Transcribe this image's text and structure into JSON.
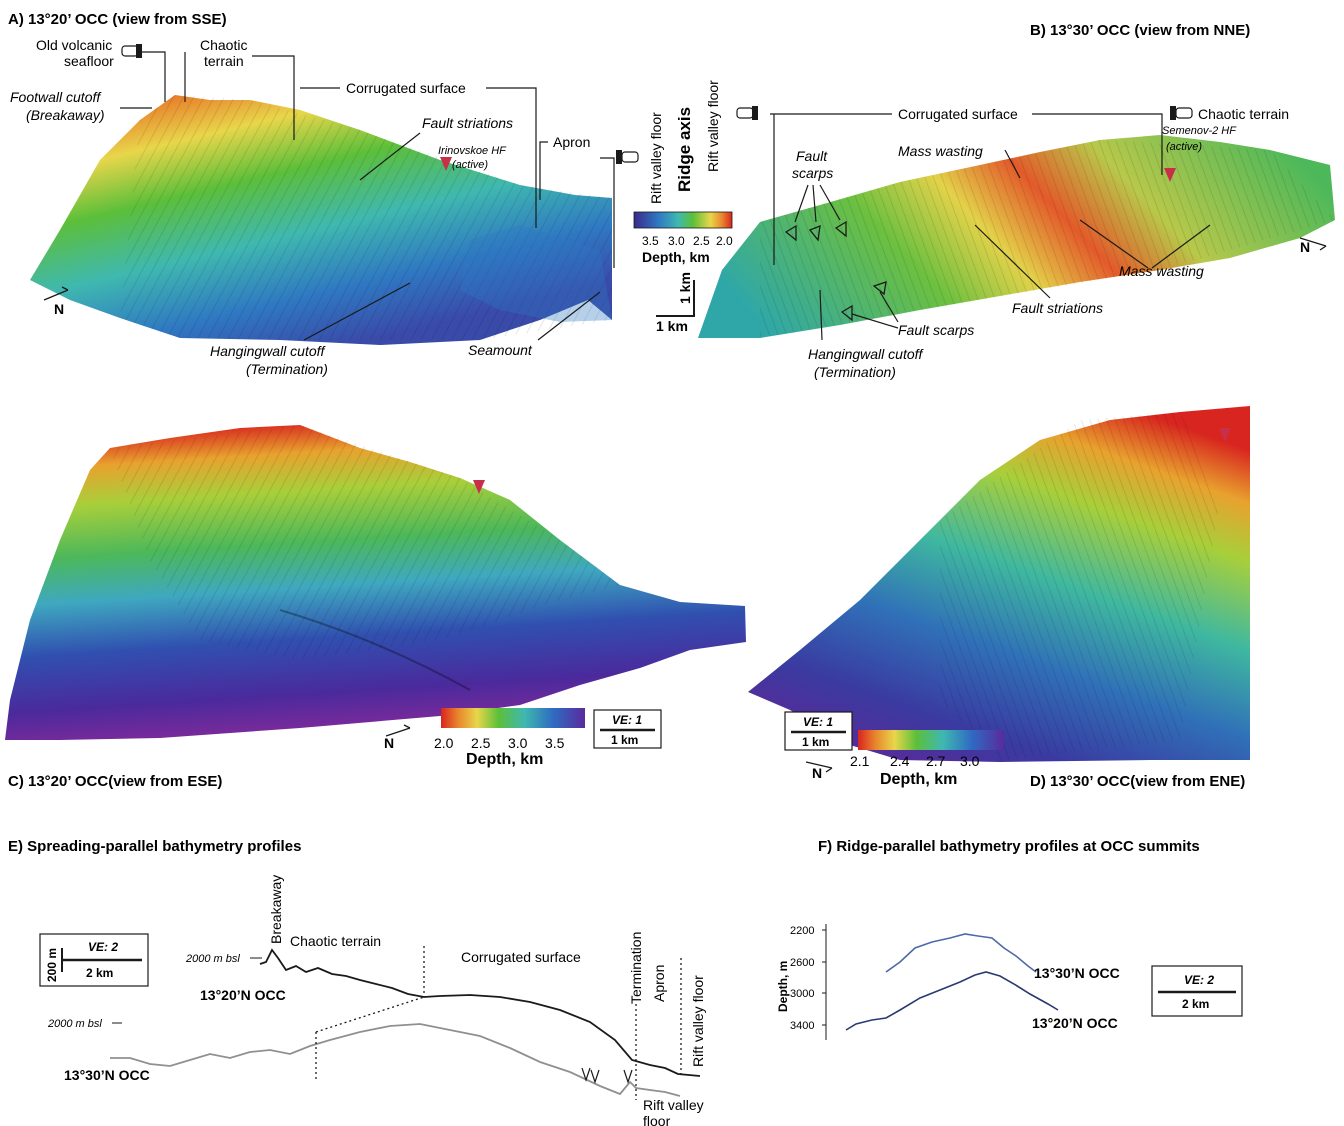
{
  "panels": {
    "a": {
      "title": "A) 13°20’ OCC (view from SSE)",
      "labels": {
        "old_seafloor_1": "Old volcanic",
        "old_seafloor_2": "seafloor",
        "chaotic_1": "Chaotic",
        "chaotic_2": "terrain",
        "corrugated": "Corrugated surface",
        "footwall_1": "Footwall cutoff",
        "footwall_2": "(Breakaway)",
        "fault_striations": "Fault striations",
        "hf_1": "Irinovskoe HF",
        "hf_2": "(active)",
        "apron": "Apron",
        "rift_floor": "Rift valley floor",
        "hangingwall_1": "Hangingwall cutoff",
        "hangingwall_2": "(Termination)",
        "seamount": "Seamount",
        "north": "N"
      }
    },
    "center": {
      "ridge_axis": "Ridge axis",
      "rift_floor": "Rift valley floor",
      "colorbar_ticks": [
        "3.5",
        "3.0",
        "2.5",
        "2.0"
      ],
      "colorbar_title": "Depth, km",
      "scale_vertical": "1 km",
      "scale_horizontal": "1 km"
    },
    "b": {
      "title": "B) 13°30’ OCC (view from NNE)",
      "labels": {
        "corrugated": "Corrugated surface",
        "chaotic": "Chaotic terrain",
        "hf_1": "Semenov-2 HF",
        "hf_2": "(active)",
        "mass_wasting": "Mass wasting",
        "fault_scarps_1": "Fault",
        "fault_scarps_2": "scarps",
        "fault_scarps": "Fault scarps",
        "fault_striations": "Fault striations",
        "hangingwall_1": "Hangingwall cutoff",
        "hangingwall_2": "(Termination)",
        "north": "N"
      }
    },
    "c": {
      "title": "C) 13°20’ OCC(view from ESE)",
      "colorbar_ticks": [
        "2.0",
        "2.5",
        "3.0",
        "3.5"
      ],
      "colorbar_title": "Depth, km",
      "ve": "VE: 1",
      "scale": "1 km",
      "north": "N"
    },
    "d": {
      "title": "D) 13°30’ OCC(view from ENE)",
      "colorbar_ticks": [
        "2.1",
        "2.4",
        "2.7",
        "3.0"
      ],
      "colorbar_title": "Depth, km",
      "ve": "VE: 1",
      "scale": "1 km",
      "north": "N"
    },
    "e": {
      "title": "E) Spreading-parallel bathymetry profiles",
      "scale_vertical": "200 m",
      "scale_horizontal": "2 km",
      "ve": "VE: 2",
      "datum_upper": "2000 m bsl",
      "datum_lower": "2000 m bsl",
      "breakaway": "Breakaway",
      "chaotic": "Chaotic terrain",
      "corrugated": "Corrugated surface",
      "termination": "Termination",
      "apron": "Apron",
      "rift_floor_vertical": "Rift valley floor",
      "rift_floor_1": "Rift valley",
      "rift_floor_2": "floor",
      "occ_2020": "13°20’N OCC",
      "occ_3030": "13°30’N OCC"
    },
    "f": {
      "title": "F) Ridge-parallel bathymetry profiles at OCC summits",
      "ylabel": "Depth, m",
      "ticks": [
        "2200",
        "2600",
        "3000",
        "3400"
      ],
      "occ_3030": "13°30’N OCC",
      "occ_2020": "13°20’N OCC",
      "ve": "VE: 2",
      "scale": "2 km"
    }
  },
  "colors": {
    "deep": "#4a2a8c",
    "mid_blue": "#2f78c2",
    "cyan": "#3fb8b0",
    "green": "#5cbf3a",
    "yellow": "#e8d64a",
    "orange": "#e8862e",
    "shallow": "#d8251f",
    "vent_marker": "#c8304a",
    "profile_2020": "#1a1a1a",
    "profile_3030": "#909090",
    "summit_3030": "#4d6aa8",
    "summit_2020": "#2a3a70"
  }
}
